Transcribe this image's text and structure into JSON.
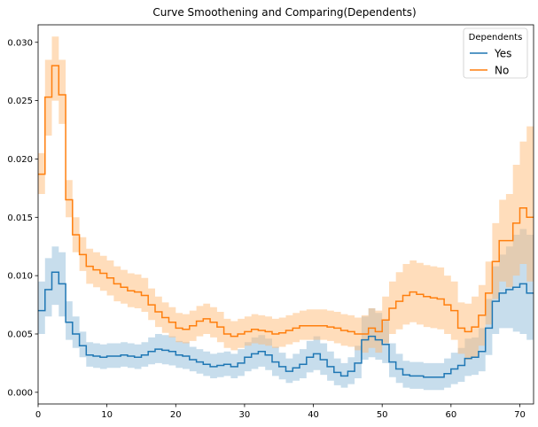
{
  "chart_data": {
    "type": "line",
    "step": true,
    "title": "Curve Smoothening and Comparing(Dependents)",
    "xlabel": "",
    "ylabel": "",
    "xlim": [
      0,
      72
    ],
    "ylim": [
      -0.001,
      0.0315
    ],
    "xticks": [
      0,
      10,
      20,
      30,
      40,
      50,
      60,
      70
    ],
    "xtick_labels": [
      "0",
      "10",
      "20",
      "30",
      "40",
      "50",
      "60",
      "70"
    ],
    "yticks": [
      0.0,
      0.005,
      0.01,
      0.015,
      0.02,
      0.025,
      0.03
    ],
    "ytick_labels": [
      "0.000",
      "0.005",
      "0.010",
      "0.015",
      "0.020",
      "0.025",
      "0.030"
    ],
    "grid": false,
    "legend": {
      "title": "Dependents",
      "location": "top-right"
    },
    "x": [
      0,
      1,
      2,
      3,
      4,
      5,
      6,
      7,
      8,
      9,
      10,
      11,
      12,
      13,
      14,
      15,
      16,
      17,
      18,
      19,
      20,
      21,
      22,
      23,
      24,
      25,
      26,
      27,
      28,
      29,
      30,
      31,
      32,
      33,
      34,
      35,
      36,
      37,
      38,
      39,
      40,
      41,
      42,
      43,
      44,
      45,
      46,
      47,
      48,
      49,
      50,
      51,
      52,
      53,
      54,
      55,
      56,
      57,
      58,
      59,
      60,
      61,
      62,
      63,
      64,
      65,
      66,
      67,
      68,
      69,
      70,
      71,
      72
    ],
    "series": [
      {
        "name": "Yes",
        "color": "#1f77b4",
        "band_color": "#1f77b4",
        "values": [
          0.007,
          0.0088,
          0.0103,
          0.0093,
          0.006,
          0.005,
          0.004,
          0.0032,
          0.0031,
          0.003,
          0.0031,
          0.0031,
          0.0032,
          0.0031,
          0.003,
          0.0032,
          0.0035,
          0.0037,
          0.0036,
          0.0035,
          0.0032,
          0.0031,
          0.0028,
          0.0026,
          0.0024,
          0.0022,
          0.0023,
          0.0024,
          0.0022,
          0.0025,
          0.003,
          0.0033,
          0.0035,
          0.0032,
          0.0026,
          0.0022,
          0.0018,
          0.0021,
          0.0024,
          0.003,
          0.0033,
          0.0028,
          0.0022,
          0.0017,
          0.0014,
          0.0018,
          0.0025,
          0.0045,
          0.0048,
          0.0045,
          0.0041,
          0.0026,
          0.002,
          0.0015,
          0.0014,
          0.0014,
          0.0013,
          0.0013,
          0.0013,
          0.0016,
          0.002,
          0.0023,
          0.0029,
          0.003,
          0.0035,
          0.0055,
          0.0078,
          0.0085,
          0.0088,
          0.009,
          0.0093,
          0.0085,
          0.0066
        ],
        "lower": [
          0.005,
          0.0065,
          0.0075,
          0.0065,
          0.0045,
          0.0038,
          0.003,
          0.0022,
          0.0021,
          0.002,
          0.0021,
          0.0021,
          0.0022,
          0.0021,
          0.002,
          0.0022,
          0.0024,
          0.0025,
          0.0024,
          0.0023,
          0.0021,
          0.002,
          0.0018,
          0.0016,
          0.0014,
          0.0012,
          0.0013,
          0.0014,
          0.0012,
          0.0014,
          0.0018,
          0.002,
          0.0022,
          0.0019,
          0.0014,
          0.0011,
          0.0008,
          0.001,
          0.0012,
          0.0017,
          0.0019,
          0.0015,
          0.001,
          0.0006,
          0.0004,
          0.0007,
          0.0012,
          0.0028,
          0.003,
          0.0028,
          0.0025,
          0.0013,
          0.0008,
          0.0004,
          0.0003,
          0.0003,
          0.0002,
          0.0002,
          0.0002,
          0.0004,
          0.0007,
          0.0009,
          0.0014,
          0.0015,
          0.0018,
          0.0032,
          0.005,
          0.0055,
          0.0055,
          0.0052,
          0.005,
          0.0045,
          0.0035
        ],
        "upper": [
          0.0095,
          0.0115,
          0.0125,
          0.012,
          0.0078,
          0.0065,
          0.0052,
          0.0043,
          0.0042,
          0.0041,
          0.0042,
          0.0042,
          0.0043,
          0.0042,
          0.0041,
          0.0043,
          0.0047,
          0.005,
          0.0049,
          0.0048,
          0.0044,
          0.0043,
          0.0039,
          0.0037,
          0.0035,
          0.0033,
          0.0034,
          0.0035,
          0.0033,
          0.0037,
          0.0043,
          0.0047,
          0.0049,
          0.0046,
          0.0039,
          0.0034,
          0.0029,
          0.0033,
          0.0037,
          0.0044,
          0.0048,
          0.0042,
          0.0035,
          0.0029,
          0.0025,
          0.003,
          0.004,
          0.0065,
          0.0072,
          0.0068,
          0.0062,
          0.0042,
          0.0033,
          0.0027,
          0.0026,
          0.0026,
          0.0025,
          0.0025,
          0.0025,
          0.0029,
          0.0034,
          0.0038,
          0.0046,
          0.0047,
          0.0055,
          0.008,
          0.0108,
          0.0118,
          0.0125,
          0.0135,
          0.014,
          0.0135,
          0.011
        ]
      },
      {
        "name": "No",
        "color": "#ff7f0e",
        "band_color": "#ffbb78",
        "values": [
          0.0187,
          0.0253,
          0.028,
          0.0255,
          0.0165,
          0.0135,
          0.0118,
          0.0108,
          0.0105,
          0.0102,
          0.0098,
          0.0093,
          0.009,
          0.0087,
          0.0086,
          0.0083,
          0.0075,
          0.0069,
          0.0064,
          0.006,
          0.0055,
          0.0054,
          0.0057,
          0.0061,
          0.0063,
          0.006,
          0.0056,
          0.005,
          0.0048,
          0.005,
          0.0052,
          0.0054,
          0.0053,
          0.0052,
          0.005,
          0.0051,
          0.0053,
          0.0055,
          0.0057,
          0.0057,
          0.0057,
          0.0057,
          0.0056,
          0.0055,
          0.0053,
          0.0052,
          0.005,
          0.005,
          0.0055,
          0.0052,
          0.0062,
          0.0072,
          0.0078,
          0.0083,
          0.0086,
          0.0084,
          0.0082,
          0.0081,
          0.008,
          0.0075,
          0.007,
          0.0055,
          0.0052,
          0.0056,
          0.0066,
          0.0085,
          0.0112,
          0.013,
          0.013,
          0.0145,
          0.0158,
          0.015,
          0.011
        ],
        "lower": [
          0.017,
          0.022,
          0.025,
          0.023,
          0.015,
          0.012,
          0.0104,
          0.0093,
          0.009,
          0.0087,
          0.0083,
          0.0078,
          0.0076,
          0.0073,
          0.0072,
          0.0069,
          0.0062,
          0.0056,
          0.0051,
          0.0047,
          0.0043,
          0.0042,
          0.0044,
          0.0048,
          0.005,
          0.0047,
          0.0043,
          0.0038,
          0.0036,
          0.0038,
          0.004,
          0.0042,
          0.0041,
          0.004,
          0.0038,
          0.0039,
          0.0041,
          0.0043,
          0.0045,
          0.0045,
          0.0045,
          0.0045,
          0.0044,
          0.0042,
          0.004,
          0.0039,
          0.0036,
          0.0034,
          0.0038,
          0.0034,
          0.0042,
          0.005,
          0.0054,
          0.0058,
          0.006,
          0.0058,
          0.0056,
          0.0055,
          0.0054,
          0.005,
          0.0045,
          0.0033,
          0.0028,
          0.003,
          0.004,
          0.0058,
          0.008,
          0.0095,
          0.009,
          0.01,
          0.011,
          0.0095,
          0.0065
        ],
        "upper": [
          0.0205,
          0.0285,
          0.0305,
          0.0285,
          0.0182,
          0.015,
          0.0133,
          0.0123,
          0.012,
          0.0117,
          0.0113,
          0.0108,
          0.0105,
          0.0102,
          0.0101,
          0.0098,
          0.0089,
          0.0082,
          0.0077,
          0.0073,
          0.0068,
          0.0067,
          0.007,
          0.0074,
          0.0076,
          0.0073,
          0.0069,
          0.0063,
          0.0061,
          0.0063,
          0.0065,
          0.0067,
          0.0066,
          0.0065,
          0.0063,
          0.0064,
          0.0066,
          0.0068,
          0.007,
          0.0071,
          0.0071,
          0.0071,
          0.007,
          0.0069,
          0.0067,
          0.0066,
          0.0064,
          0.0066,
          0.0072,
          0.007,
          0.0082,
          0.0095,
          0.0103,
          0.011,
          0.0113,
          0.0111,
          0.0109,
          0.0108,
          0.0107,
          0.01,
          0.0095,
          0.0077,
          0.0076,
          0.0082,
          0.0092,
          0.0112,
          0.0145,
          0.0165,
          0.017,
          0.0195,
          0.0215,
          0.0228,
          0.02
        ]
      }
    ]
  }
}
